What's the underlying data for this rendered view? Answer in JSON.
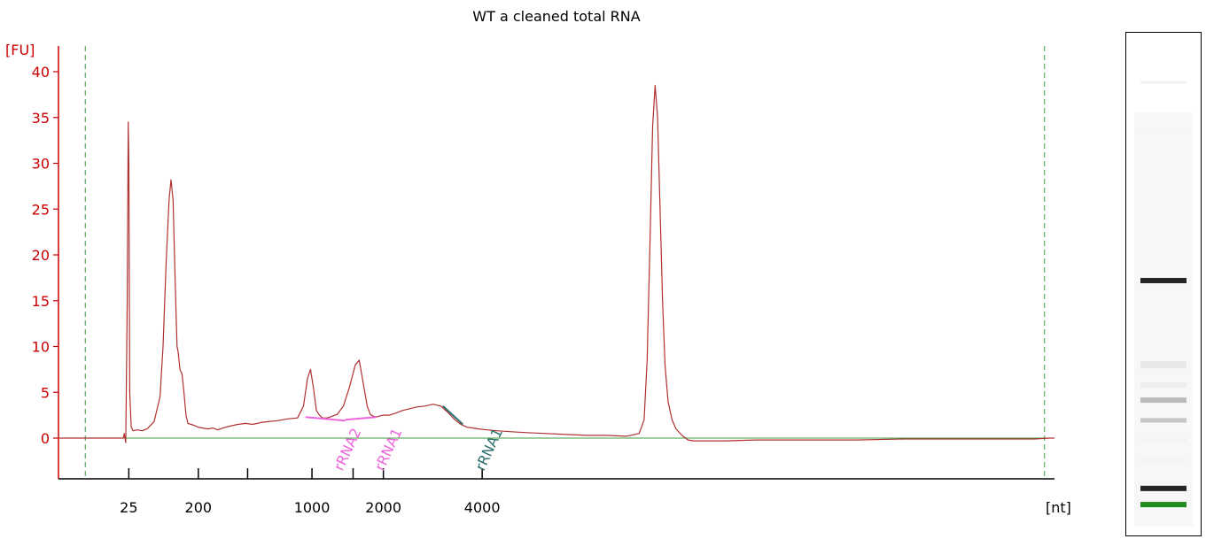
{
  "chart_data": {
    "type": "line",
    "title": "WT a cleaned total RNA",
    "ylabel": "[FU]",
    "xlabel": "[nt]",
    "ylim": [
      -4.5,
      43
    ],
    "xlim": [
      0,
      100
    ],
    "y_ticks": [
      0,
      5,
      10,
      15,
      20,
      25,
      30,
      35,
      40
    ],
    "x_ticks": [
      {
        "pos": 7.06,
        "label": "25"
      },
      {
        "pos": 14.04,
        "label": "200"
      },
      {
        "pos": 18.99,
        "label": ""
      },
      {
        "pos": 25.45,
        "label": "1000"
      },
      {
        "pos": 29.58,
        "label": ""
      },
      {
        "pos": 32.62,
        "label": "2000"
      },
      {
        "pos": 42.54,
        "label": "4000"
      }
    ],
    "dashed_markers": [
      2.69,
      99.0
    ],
    "baseline_y": 0,
    "series": [
      {
        "x": [
          0,
          6.5,
          6.6,
          6.75,
          6.9,
          7.0,
          7.06,
          7.15,
          7.3,
          7.5,
          7.9,
          8.4,
          8.9,
          9.6,
          10.2,
          10.5,
          10.8,
          11.1,
          11.3,
          11.5,
          11.65,
          11.8,
          11.9,
          12.0,
          12.2,
          12.4,
          12.6,
          12.8,
          13.0,
          13.3,
          13.6,
          14.0,
          14.5,
          15.0,
          15.5,
          16.0,
          16.5,
          17.2,
          18.0,
          18.8,
          19.5,
          20.3,
          21.0,
          22.0,
          23.0,
          24.0,
          24.6,
          25.0,
          25.3,
          25.6,
          25.9,
          26.2,
          26.5,
          27.0,
          27.5,
          28.0,
          28.6,
          29.2,
          29.8,
          30.2,
          30.6,
          31.0,
          31.3,
          31.6,
          31.9,
          32.2,
          32.6,
          33.2,
          33.8,
          34.5,
          35.2,
          36.0,
          36.8,
          37.6,
          38.4,
          39.1,
          39.8,
          40.4,
          41.0,
          41.6,
          42.2,
          43.0,
          44.0,
          45.5,
          47.0,
          49.0,
          51.0,
          53.0,
          55.0,
          57.0,
          58.3,
          58.8,
          59.1,
          59.4,
          59.65,
          59.9,
          60.15,
          60.4,
          60.65,
          60.9,
          61.2,
          61.6,
          62.0,
          62.6,
          63.2,
          63.8,
          64.5,
          65.5,
          67.0,
          70.0,
          75.0,
          80.0,
          85.0,
          90.0,
          95.0,
          98.0,
          99.5,
          100
        ],
        "y": [
          0,
          0,
          0.5,
          -0.5,
          15,
          34.5,
          30,
          5,
          1.2,
          0.8,
          0.9,
          0.8,
          1.0,
          1.8,
          4.5,
          10,
          19,
          26,
          28.2,
          26,
          20,
          14,
          10,
          9.5,
          7.5,
          7.0,
          5,
          2.5,
          1.6,
          1.5,
          1.4,
          1.2,
          1.1,
          1.0,
          1.1,
          0.9,
          1.1,
          1.3,
          1.5,
          1.6,
          1.5,
          1.7,
          1.8,
          1.9,
          2.1,
          2.2,
          3.5,
          6.5,
          7.5,
          5.5,
          3.0,
          2.5,
          2.2,
          2.2,
          2.4,
          2.6,
          3.5,
          5.5,
          8.0,
          8.5,
          6.0,
          3.5,
          2.6,
          2.4,
          2.3,
          2.4,
          2.5,
          2.5,
          2.7,
          3.0,
          3.2,
          3.4,
          3.5,
          3.7,
          3.5,
          2.8,
          2.0,
          1.5,
          1.2,
          1.1,
          1.0,
          0.9,
          0.8,
          0.7,
          0.6,
          0.5,
          0.4,
          0.3,
          0.3,
          0.2,
          0.5,
          2.0,
          8.5,
          22,
          34,
          38.5,
          35,
          25,
          15,
          8,
          4,
          2,
          1,
          0.3,
          -0.2,
          -0.3,
          -0.3,
          -0.3,
          -0.3,
          -0.2,
          -0.2,
          -0.2,
          -0.1,
          -0.1,
          -0.1,
          -0.1,
          0,
          0
        ]
      }
    ],
    "annotations": [
      {
        "label": "rRNA2",
        "color": "#ee66dd",
        "x": 28.5,
        "line": [
          [
            24.8,
            2.3
          ],
          [
            28.8,
            1.9
          ]
        ]
      },
      {
        "label": "rRNA1",
        "color": "#ee66dd",
        "x": 32.6,
        "line": [
          [
            28.8,
            2.0
          ],
          [
            31.9,
            2.3
          ]
        ]
      },
      {
        "label": "rRNA1",
        "color": "#2e6f6f",
        "x": 42.7,
        "line": [
          [
            38.6,
            3.5
          ],
          [
            40.6,
            1.5
          ]
        ]
      }
    ],
    "colors": {
      "trace": "#b03030",
      "axis": "#cc0000",
      "baseline": "#3c9c3c",
      "marker": "#3c9c3c"
    }
  },
  "gel": {
    "bands": [
      {
        "level": 0.1,
        "darkness": 0.05,
        "thickness": 3
      },
      {
        "level": 0.2,
        "darkness": 0.04,
        "thickness": 3
      },
      {
        "level": 0.493,
        "darkness": 0.95,
        "thickness": 6
      },
      {
        "level": 0.66,
        "darkness": 0.1,
        "thickness": 8
      },
      {
        "level": 0.7,
        "darkness": 0.08,
        "thickness": 6
      },
      {
        "level": 0.73,
        "darkness": 0.3,
        "thickness": 6
      },
      {
        "level": 0.77,
        "darkness": 0.25,
        "thickness": 5
      },
      {
        "level": 0.81,
        "darkness": 0.05,
        "thickness": 4
      },
      {
        "level": 0.85,
        "darkness": 0.05,
        "thickness": 4
      },
      {
        "level": 0.905,
        "darkness": 0.95,
        "thickness": 6
      }
    ],
    "marker_color": "#1e8c1e",
    "marker_level": 0.937
  }
}
